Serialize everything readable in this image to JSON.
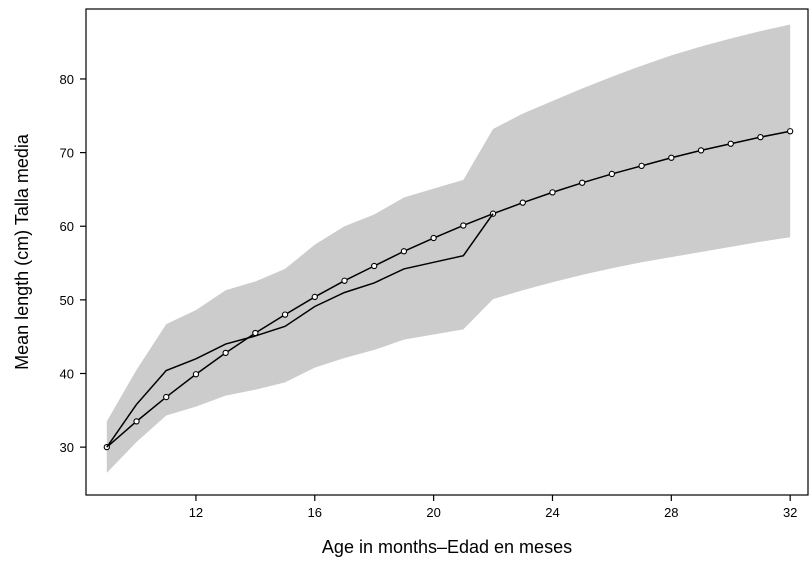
{
  "chart_data": {
    "type": "line",
    "xlabel": "Age in months–Edad en meses",
    "ylabel": "Mean length (cm) Talla media",
    "xlim": [
      8.3,
      32.6
    ],
    "ylim": [
      23.5,
      89.5
    ],
    "x_ticks": [
      12,
      16,
      20,
      24,
      28,
      32
    ],
    "y_ticks": [
      30,
      40,
      50,
      60,
      70,
      80
    ],
    "grid": false,
    "band": {
      "x": [
        9,
        10,
        11,
        12,
        13,
        14,
        15,
        16,
        17,
        18,
        19,
        20,
        21,
        22,
        23,
        24,
        25,
        26,
        27,
        28,
        29,
        30,
        31,
        32
      ],
      "upper": [
        33.5,
        40.5,
        46.7,
        48.6,
        51.3,
        52.5,
        54.2,
        57.5,
        60.0,
        61.6,
        63.9,
        65.1,
        66.3,
        73.2,
        75.3,
        77.0,
        78.7,
        80.3,
        81.8,
        83.2,
        84.4,
        85.5,
        86.5,
        87.4
      ],
      "lower": [
        26.5,
        30.7,
        34.3,
        35.5,
        37.0,
        37.8,
        38.8,
        40.8,
        42.1,
        43.2,
        44.6,
        45.3,
        46.0,
        50.1,
        51.3,
        52.4,
        53.4,
        54.3,
        55.1,
        55.8,
        56.5,
        57.2,
        57.9,
        58.5
      ]
    },
    "series": [
      {
        "style": "line-with-circles",
        "x": [
          9,
          10,
          11,
          12,
          13,
          14,
          15,
          16,
          17,
          18,
          19,
          20,
          21,
          22,
          23,
          24,
          25,
          26,
          27,
          28,
          29,
          30,
          31,
          32
        ],
        "y": [
          30.0,
          33.5,
          36.8,
          39.9,
          42.8,
          45.5,
          48.0,
          50.4,
          52.6,
          54.6,
          56.6,
          58.4,
          60.1,
          61.7,
          63.2,
          64.6,
          65.9,
          67.1,
          68.2,
          69.3,
          70.3,
          71.2,
          72.1,
          72.9
        ]
      },
      {
        "style": "line",
        "x": [
          9,
          10,
          11,
          12,
          13,
          14,
          15,
          16,
          17,
          18,
          19,
          20,
          21,
          22
        ],
        "y": [
          30.0,
          35.8,
          40.4,
          42.0,
          44.0,
          45.1,
          46.4,
          49.1,
          51.0,
          52.3,
          54.2,
          55.1,
          56.0,
          61.7
        ]
      }
    ],
    "colors": {
      "band": "#cccccc",
      "line": "#000000",
      "marker_fill": "#ffffff"
    }
  }
}
